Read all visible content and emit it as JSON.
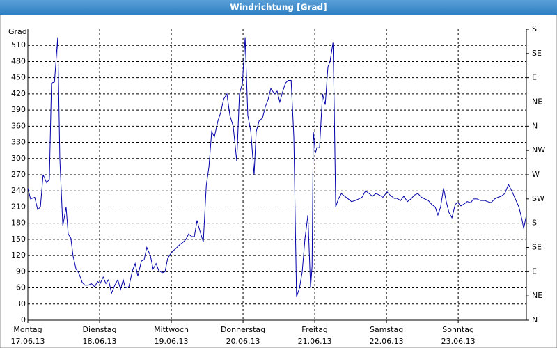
{
  "chart_data": {
    "type": "line",
    "title": "Windrichtung [Grad]",
    "ylabel": "Grad",
    "color": "#0000a8",
    "grid": true,
    "xlim": [
      0,
      166.8
    ],
    "xticks": [
      {
        "value": 0,
        "label": "Montag"
      },
      {
        "value": 24,
        "label": "Dienstag"
      },
      {
        "value": 48,
        "label": "Mittwoch"
      },
      {
        "value": 72,
        "label": "Donnerstag"
      },
      {
        "value": 96,
        "label": "Freitag"
      },
      {
        "value": 120,
        "label": "Samstag"
      },
      {
        "value": 144,
        "label": "Sonntag"
      }
    ],
    "xtick_sublabels": [
      "17.06.13",
      "18.06.13",
      "19.06.13",
      "20.06.13",
      "21.06.13",
      "22.06.13",
      "23.06.13"
    ],
    "ylim": [
      0,
      540
    ],
    "yticks": [
      0,
      30,
      60,
      90,
      120,
      150,
      180,
      210,
      240,
      270,
      300,
      330,
      360,
      390,
      420,
      450,
      480,
      510
    ],
    "y2lim": [
      0,
      540
    ],
    "y2ticks": [
      {
        "value": 0,
        "label": "N"
      },
      {
        "value": 45,
        "label": "NE"
      },
      {
        "value": 90,
        "label": "E"
      },
      {
        "value": 135,
        "label": "SE"
      },
      {
        "value": 180,
        "label": "S"
      },
      {
        "value": 225,
        "label": "SW"
      },
      {
        "value": 270,
        "label": "W"
      },
      {
        "value": 315,
        "label": "NW"
      },
      {
        "value": 360,
        "label": "N"
      },
      {
        "value": 405,
        "label": "NE"
      },
      {
        "value": 450,
        "label": "E"
      },
      {
        "value": 495,
        "label": "SE"
      },
      {
        "value": 540,
        "label": "S"
      }
    ],
    "x": [
      0,
      0.9,
      2.3,
      3.3,
      4.2,
      5.1,
      6.3,
      7.2,
      7.9,
      8.9,
      10.0,
      10.7,
      11.7,
      12.8,
      13.5,
      14.4,
      15.1,
      16.1,
      17.0,
      18.2,
      19.1,
      20.3,
      21.2,
      22.4,
      23.3,
      24.2,
      25.2,
      26.1,
      27.0,
      28.0,
      29.1,
      30.1,
      31.0,
      31.9,
      32.6,
      33.8,
      35.0,
      35.9,
      36.8,
      38.0,
      38.9,
      39.8,
      41.0,
      41.9,
      42.9,
      43.8,
      45.0,
      45.9,
      46.8,
      48.0,
      48.9,
      49.9,
      50.8,
      52.0,
      52.9,
      53.8,
      54.8,
      55.7,
      56.6,
      57.6,
      58.7,
      59.7,
      60.6,
      61.5,
      62.4,
      63.6,
      64.5,
      65.5,
      66.6,
      67.6,
      68.7,
      69.9,
      70.8,
      71.8,
      72.7,
      73.6,
      74.6,
      75.7,
      76.4,
      77.4,
      78.5,
      79.4,
      80.4,
      81.3,
      82.5,
      83.4,
      84.3,
      85.3,
      86.2,
      87.1,
      88.1,
      89.0,
      89.9,
      90.9,
      91.8,
      92.7,
      93.7,
      94.6,
      95.1,
      95.5,
      96.2,
      96.7,
      97.6,
      98.6,
      99.5,
      100.4,
      101.1,
      102.1,
      102.5,
      103.0,
      103.9,
      104.9,
      106.0,
      107.2,
      108.3,
      109.5,
      110.7,
      111.8,
      113.0,
      114.2,
      115.3,
      116.5,
      117.7,
      118.8,
      120.2,
      121.2,
      122.6,
      123.5,
      124.7,
      125.8,
      127.0,
      128.2,
      129.3,
      130.5,
      131.7,
      132.8,
      134.0,
      135.1,
      136.3,
      137.2,
      138.1,
      139.1,
      140.0,
      140.9,
      141.9,
      143.0,
      143.9,
      144.9,
      145.8,
      147.0,
      148.2,
      149.1,
      150.3,
      151.5,
      152.9,
      153.8,
      155.0,
      156.2,
      157.3,
      158.4,
      159.6,
      160.8,
      161.9,
      163.1,
      164.3,
      165.4,
      165.9,
      166.8
    ],
    "values": [
      245,
      225,
      228,
      205,
      210,
      270,
      255,
      262,
      440,
      442,
      525,
      300,
      175,
      210,
      160,
      152,
      120,
      95,
      88,
      70,
      65,
      65,
      68,
      62,
      72,
      68,
      80,
      68,
      75,
      50,
      65,
      75,
      57,
      75,
      60,
      62,
      92,
      105,
      82,
      110,
      112,
      135,
      120,
      95,
      105,
      92,
      88,
      90,
      115,
      125,
      130,
      135,
      140,
      145,
      150,
      160,
      155,
      155,
      185,
      165,
      145,
      250,
      285,
      350,
      340,
      370,
      385,
      410,
      420,
      380,
      360,
      295,
      420,
      440,
      525,
      380,
      350,
      270,
      350,
      370,
      375,
      395,
      410,
      430,
      420,
      425,
      405,
      425,
      440,
      445,
      445,
      340,
      43,
      60,
      90,
      150,
      195,
      60,
      100,
      350,
      310,
      320,
      320,
      420,
      400,
      470,
      480,
      515,
      400,
      210,
      225,
      235,
      230,
      225,
      220,
      222,
      225,
      228,
      240,
      235,
      230,
      235,
      232,
      228,
      238,
      232,
      226,
      226,
      222,
      230,
      220,
      225,
      232,
      235,
      228,
      225,
      222,
      215,
      210,
      195,
      210,
      245,
      220,
      200,
      190,
      215,
      218,
      212,
      215,
      220,
      218,
      225,
      225,
      222,
      222,
      220,
      218,
      225,
      228,
      230,
      235,
      252,
      240,
      225,
      210,
      185,
      170,
      195
    ]
  }
}
